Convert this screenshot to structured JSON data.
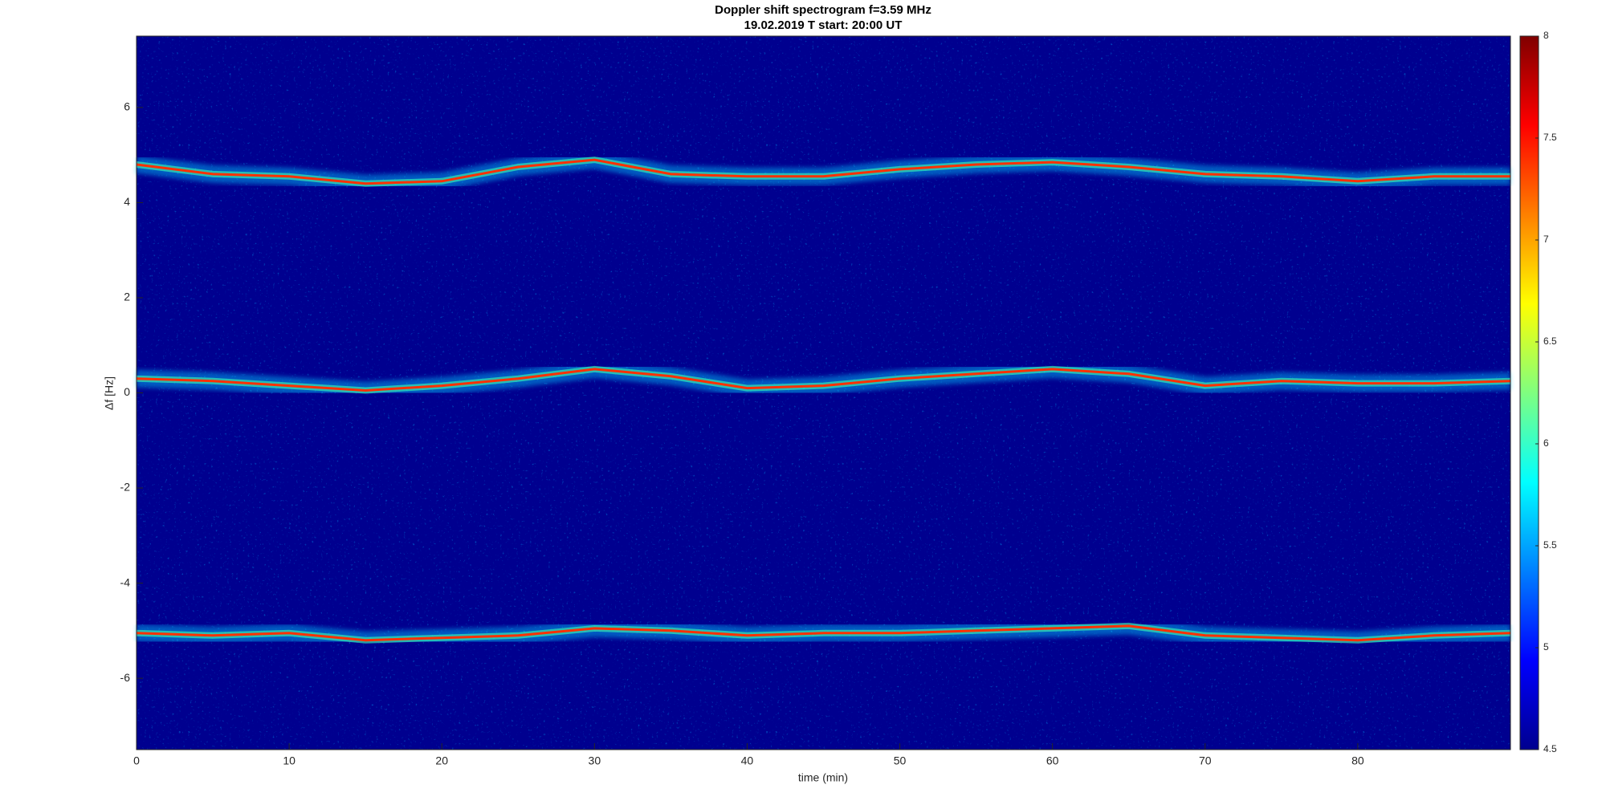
{
  "chart_data": {
    "type": "spectrogram",
    "title": "Doppler shift spectrogram f=3.59 MHz",
    "subtitle": "19.02.2019   T start: 20:00 UT",
    "xlabel": "time (min)",
    "ylabel": "Δf [Hz]",
    "xlim": [
      0,
      90
    ],
    "xticks": [
      0,
      10,
      20,
      30,
      40,
      50,
      60,
      70,
      80
    ],
    "ylim": [
      -7.5,
      7.5
    ],
    "yticks": [
      -6,
      -4,
      -2,
      0,
      2,
      4,
      6
    ],
    "background": "#00008f",
    "colormap": "jet",
    "clim": [
      4.5,
      8
    ],
    "cticks": [
      4.5,
      5,
      5.5,
      6,
      6.5,
      7,
      7.5,
      8
    ],
    "x": [
      0,
      5,
      10,
      15,
      20,
      25,
      30,
      35,
      40,
      45,
      50,
      55,
      60,
      65,
      70,
      75,
      80,
      85,
      90
    ],
    "series": [
      {
        "color": "#ff3000",
        "values": [
          4.8,
          4.6,
          4.55,
          4.4,
          4.45,
          4.75,
          4.9,
          4.6,
          4.55,
          4.55,
          4.7,
          4.8,
          4.85,
          4.75,
          4.6,
          4.55,
          4.45,
          4.55,
          4.55
        ]
      },
      {
        "color": "#ff3000",
        "values": [
          0.3,
          0.25,
          0.15,
          0.05,
          0.15,
          0.3,
          0.5,
          0.35,
          0.1,
          0.15,
          0.3,
          0.4,
          0.5,
          0.4,
          0.15,
          0.25,
          0.2,
          0.2,
          0.25
        ]
      },
      {
        "color": "#ff3000",
        "values": [
          -5.05,
          -5.1,
          -5.05,
          -5.2,
          -5.15,
          -5.1,
          -4.95,
          -5.0,
          -5.1,
          -5.05,
          -5.05,
          -5.0,
          -4.95,
          -4.9,
          -5.1,
          -5.15,
          -5.2,
          -5.1,
          -5.05
        ]
      }
    ]
  }
}
